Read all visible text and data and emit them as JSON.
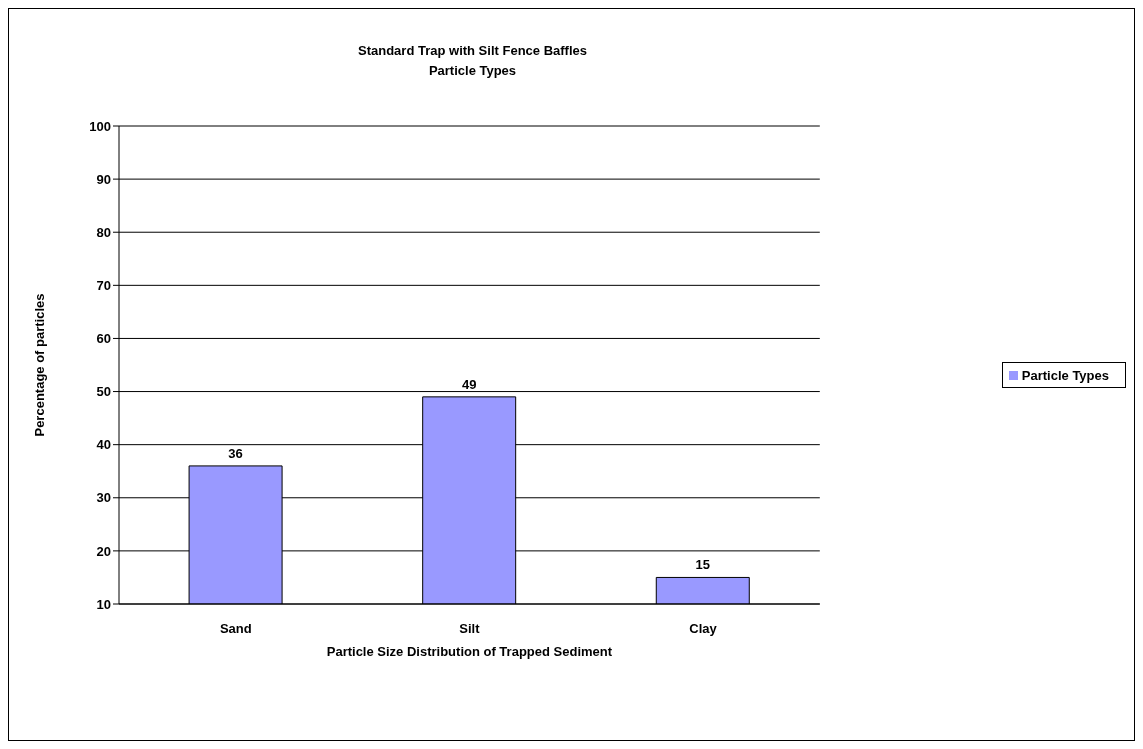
{
  "chart_data": {
    "type": "bar",
    "title": "Standard Trap with Silt Fence Baffles",
    "subtitle": "Particle Types",
    "xlabel": "Particle Size Distribution of Trapped Sediment",
    "ylabel": "Percentage of particles",
    "categories": [
      "Sand",
      "Silt",
      "Clay"
    ],
    "series": [
      {
        "name": "Particle Types",
        "color": "#9999ff",
        "values": [
          36,
          49,
          15
        ]
      }
    ],
    "ylim": [
      10,
      100
    ],
    "yticks": [
      10,
      20,
      30,
      40,
      50,
      60,
      70,
      80,
      90,
      100
    ],
    "grid": "y",
    "legend": "right",
    "data_labels": true
  }
}
